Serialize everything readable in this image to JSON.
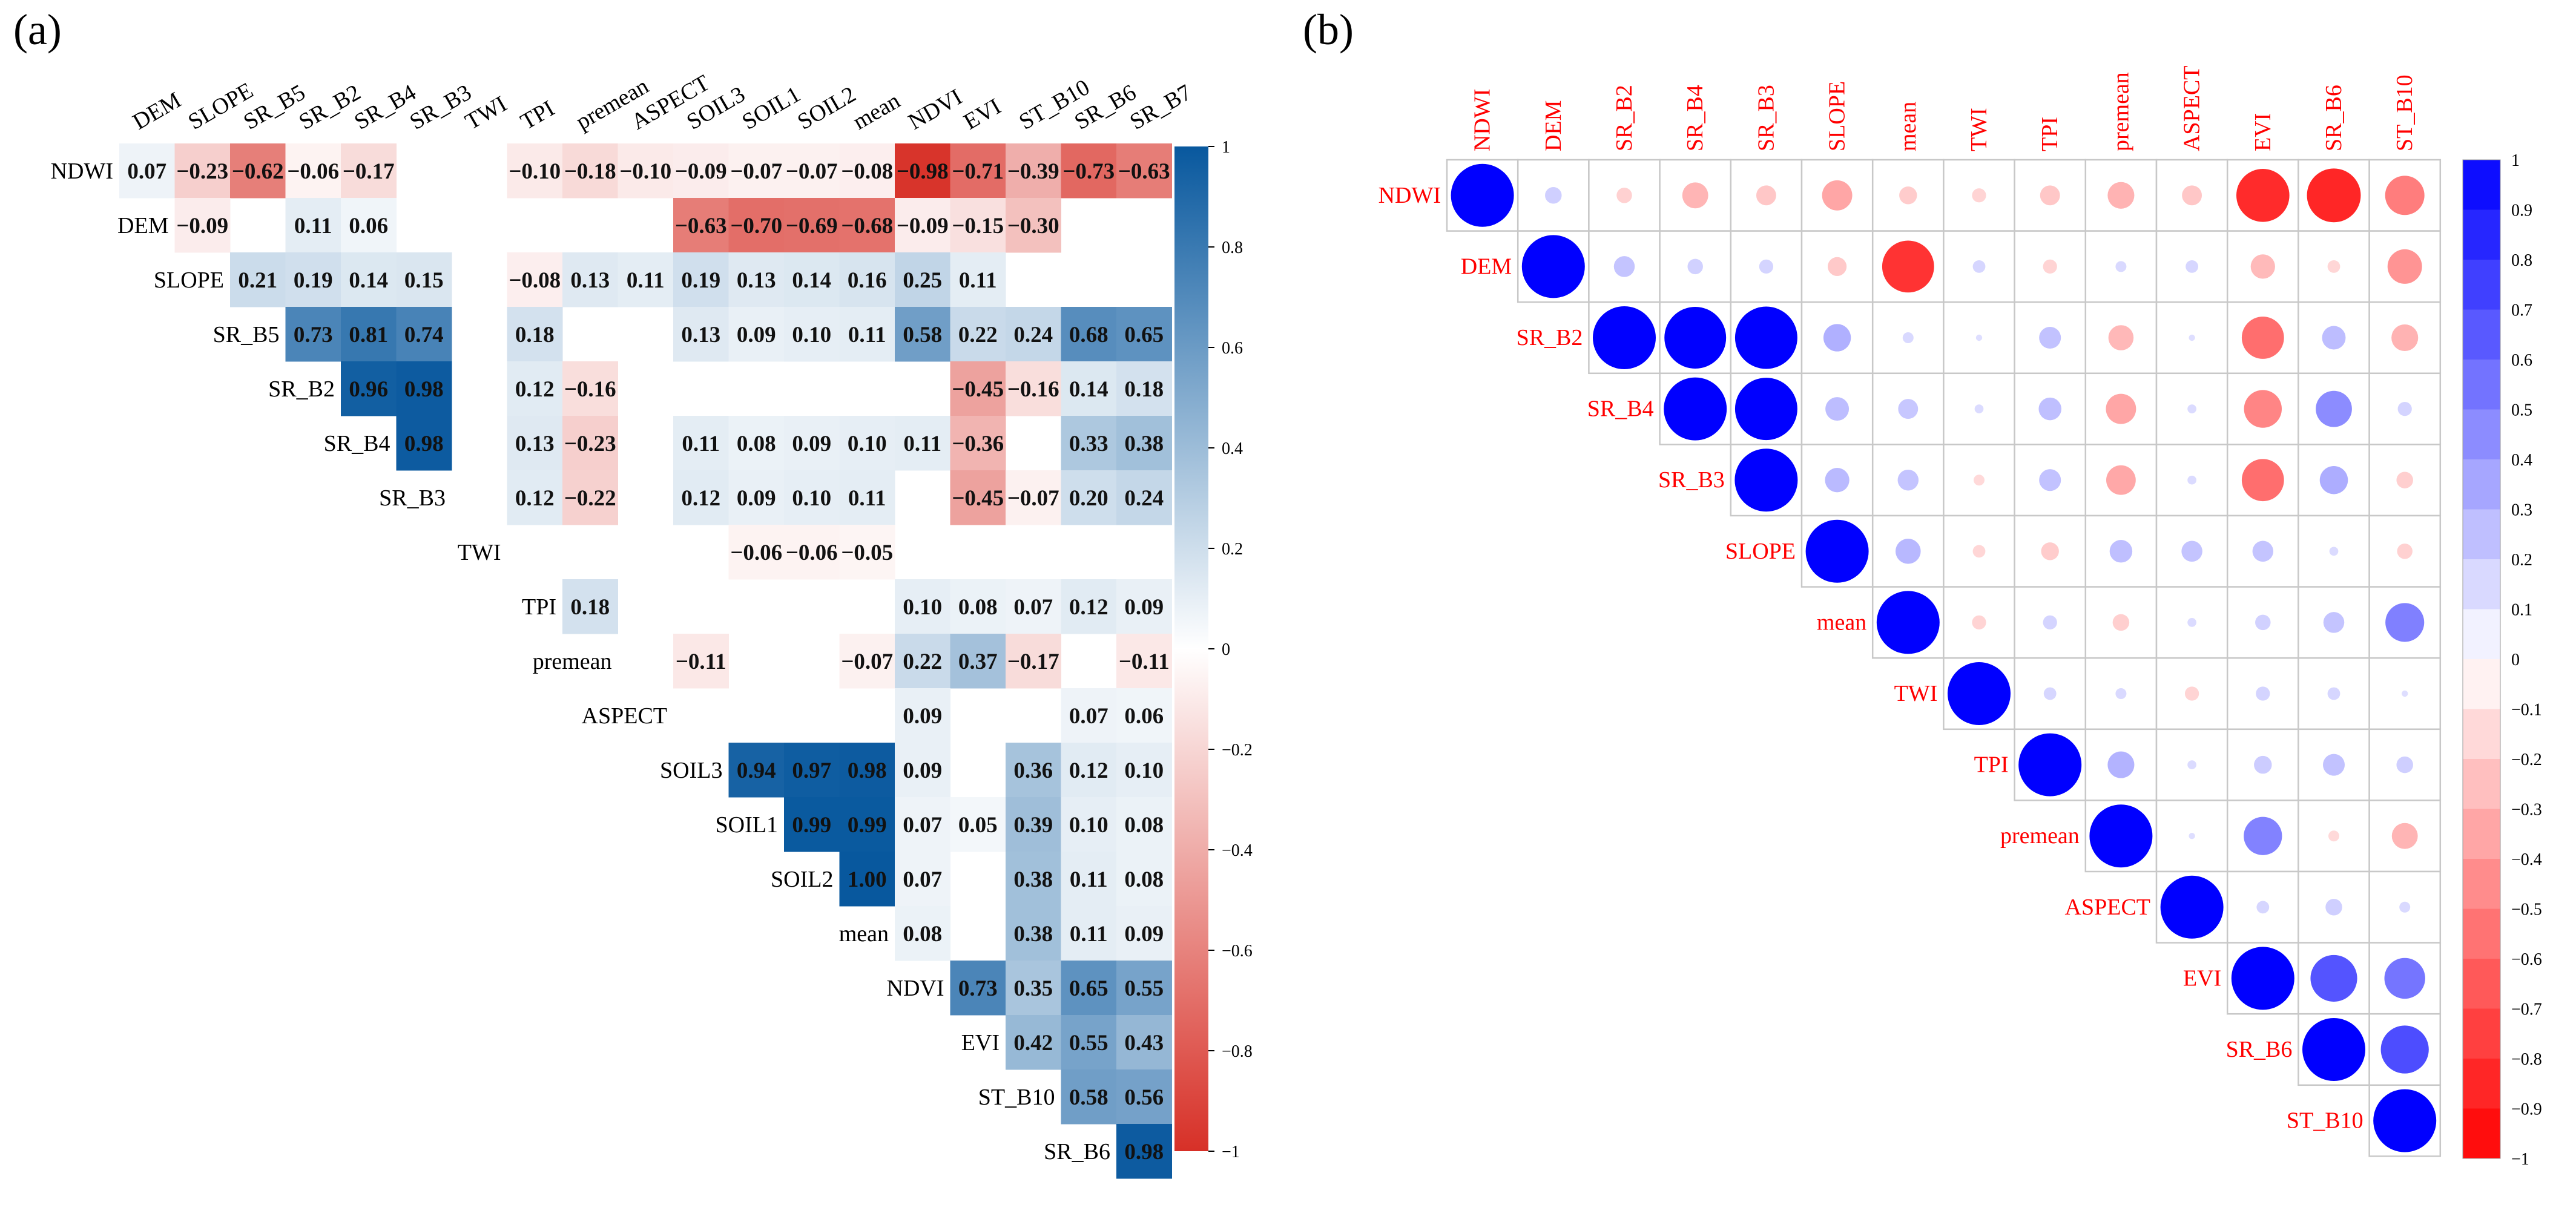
{
  "panels": {
    "a": {
      "label": "(a)"
    },
    "b": {
      "label": "(b)"
    }
  },
  "chart_data": [
    {
      "type": "heatmap",
      "panel": "(a)",
      "title": "",
      "columns": [
        "DEM",
        "SLOPE",
        "SR_B5",
        "SR_B2",
        "SR_B4",
        "SR_B3",
        "TWI",
        "TPI",
        "premean",
        "ASPECT",
        "SOIL3",
        "SOIL1",
        "SOIL2",
        "mean",
        "NDVI",
        "EVI",
        "ST_B10",
        "SR_B6",
        "SR_B7"
      ],
      "rows": [
        "NDWI",
        "DEM",
        "SLOPE",
        "SR_B5",
        "SR_B2",
        "SR_B4",
        "SR_B3",
        "TWI",
        "TPI",
        "premean",
        "ASPECT",
        "SOIL3",
        "SOIL1",
        "SOIL2",
        "mean",
        "NDVI",
        "EVI",
        "ST_B10",
        "SR_B6"
      ],
      "values": [
        [
          0.07,
          -0.23,
          -0.62,
          -0.06,
          -0.17,
          null,
          null,
          -0.1,
          -0.18,
          -0.1,
          -0.09,
          -0.07,
          -0.07,
          -0.08,
          -0.98,
          -0.71,
          -0.39,
          -0.73,
          -0.63
        ],
        [
          null,
          -0.09,
          null,
          0.11,
          0.06,
          null,
          null,
          null,
          null,
          null,
          -0.63,
          -0.7,
          -0.69,
          -0.68,
          -0.09,
          -0.15,
          -0.3,
          null,
          null
        ],
        [
          null,
          null,
          0.21,
          0.19,
          0.14,
          0.15,
          null,
          -0.08,
          0.13,
          0.11,
          0.19,
          0.13,
          0.14,
          0.16,
          0.25,
          0.11,
          null,
          null,
          null
        ],
        [
          null,
          null,
          null,
          0.73,
          0.81,
          0.74,
          null,
          0.18,
          null,
          null,
          0.13,
          0.09,
          0.1,
          0.11,
          0.58,
          0.22,
          0.24,
          0.68,
          0.65
        ],
        [
          null,
          null,
          null,
          null,
          0.96,
          0.98,
          null,
          0.12,
          -0.16,
          null,
          null,
          null,
          null,
          null,
          null,
          -0.45,
          -0.16,
          0.14,
          0.18
        ],
        [
          null,
          null,
          null,
          null,
          null,
          0.98,
          null,
          0.13,
          -0.23,
          null,
          0.11,
          0.08,
          0.09,
          0.1,
          0.11,
          -0.36,
          null,
          0.33,
          0.38
        ],
        [
          null,
          null,
          null,
          null,
          null,
          null,
          null,
          0.12,
          -0.22,
          null,
          0.12,
          0.09,
          0.1,
          0.11,
          null,
          -0.45,
          -0.07,
          0.2,
          0.24
        ],
        [
          null,
          null,
          null,
          null,
          null,
          null,
          null,
          null,
          null,
          null,
          null,
          -0.06,
          -0.06,
          -0.05,
          null,
          null,
          null,
          null,
          null
        ],
        [
          null,
          null,
          null,
          null,
          null,
          null,
          null,
          null,
          0.18,
          null,
          null,
          null,
          null,
          null,
          0.1,
          0.08,
          0.07,
          0.12,
          0.09
        ],
        [
          null,
          null,
          null,
          null,
          null,
          null,
          null,
          null,
          null,
          null,
          -0.11,
          null,
          null,
          -0.07,
          0.22,
          0.37,
          -0.17,
          null,
          -0.11
        ],
        [
          null,
          null,
          null,
          null,
          null,
          null,
          null,
          null,
          null,
          null,
          null,
          null,
          null,
          null,
          0.09,
          null,
          null,
          0.07,
          0.06
        ],
        [
          null,
          null,
          null,
          null,
          null,
          null,
          null,
          null,
          null,
          null,
          null,
          0.94,
          0.97,
          0.98,
          0.09,
          null,
          0.36,
          0.12,
          0.1
        ],
        [
          null,
          null,
          null,
          null,
          null,
          null,
          null,
          null,
          null,
          null,
          null,
          null,
          0.99,
          0.99,
          0.07,
          0.05,
          0.39,
          0.1,
          0.08
        ],
        [
          null,
          null,
          null,
          null,
          null,
          null,
          null,
          null,
          null,
          null,
          null,
          null,
          null,
          1.0,
          0.07,
          null,
          0.38,
          0.11,
          0.08
        ],
        [
          null,
          null,
          null,
          null,
          null,
          null,
          null,
          null,
          null,
          null,
          null,
          null,
          null,
          null,
          0.08,
          null,
          0.38,
          0.11,
          0.09
        ],
        [
          null,
          null,
          null,
          null,
          null,
          null,
          null,
          null,
          null,
          null,
          null,
          null,
          null,
          null,
          null,
          0.73,
          0.35,
          0.65,
          0.55
        ],
        [
          null,
          null,
          null,
          null,
          null,
          null,
          null,
          null,
          null,
          null,
          null,
          null,
          null,
          null,
          null,
          null,
          0.42,
          0.55,
          0.43
        ],
        [
          null,
          null,
          null,
          null,
          null,
          null,
          null,
          null,
          null,
          null,
          null,
          null,
          null,
          null,
          null,
          null,
          null,
          0.58,
          0.56
        ],
        [
          null,
          null,
          null,
          null,
          null,
          null,
          null,
          null,
          null,
          null,
          null,
          null,
          null,
          null,
          null,
          null,
          null,
          null,
          0.98
        ]
      ],
      "colorbar": {
        "min": -1,
        "max": 1,
        "ticks": [
          "1",
          "0.8",
          "0.6",
          "0.4",
          "0.2",
          "0",
          "−0.2",
          "−0.4",
          "−0.6",
          "−0.8",
          "−1"
        ],
        "tick_values": [
          1,
          0.8,
          0.6,
          0.4,
          0.2,
          0,
          -0.2,
          -0.4,
          -0.6,
          -0.8,
          -1
        ]
      },
      "colors": {
        "negative": "#d73027",
        "neutral": "#ffffff",
        "positive": "#08589e"
      }
    },
    {
      "type": "heatmap",
      "panel": "(b)",
      "style": "upper-triangle circle correlogram",
      "variables": [
        "NDWI",
        "DEM",
        "SR_B2",
        "SR_B4",
        "SR_B3",
        "SLOPE",
        "mean",
        "TWI",
        "TPI",
        "premean",
        "ASPECT",
        "EVI",
        "SR_B6",
        "ST_B10"
      ],
      "values": [
        [
          1.0,
          0.07,
          -0.06,
          -0.17,
          -0.1,
          -0.23,
          -0.08,
          -0.05,
          -0.1,
          -0.18,
          -0.1,
          -0.71,
          -0.73,
          -0.39
        ],
        [
          null,
          1.0,
          0.11,
          0.06,
          0.05,
          -0.09,
          -0.68,
          0.04,
          -0.05,
          0.03,
          0.04,
          -0.15,
          -0.04,
          -0.3
        ],
        [
          null,
          null,
          1.0,
          0.96,
          0.98,
          0.19,
          0.03,
          0.01,
          0.12,
          -0.16,
          0.01,
          -0.45,
          0.14,
          -0.18
        ],
        [
          null,
          null,
          null,
          1.0,
          0.98,
          0.14,
          0.1,
          0.02,
          0.13,
          -0.23,
          0.02,
          -0.36,
          0.33,
          0.05
        ],
        [
          null,
          null,
          null,
          null,
          1.0,
          0.15,
          0.11,
          -0.03,
          0.12,
          -0.22,
          0.02,
          -0.45,
          0.2,
          -0.07
        ],
        [
          null,
          null,
          null,
          null,
          null,
          1.0,
          0.16,
          -0.04,
          -0.08,
          0.13,
          0.11,
          0.11,
          0.02,
          -0.06
        ],
        [
          null,
          null,
          null,
          null,
          null,
          null,
          1.0,
          -0.05,
          0.05,
          -0.07,
          0.02,
          0.06,
          0.11,
          0.38
        ],
        [
          null,
          null,
          null,
          null,
          null,
          null,
          null,
          1.0,
          0.04,
          0.03,
          -0.05,
          0.05,
          0.04,
          0.01
        ],
        [
          null,
          null,
          null,
          null,
          null,
          null,
          null,
          null,
          1.0,
          0.18,
          0.02,
          0.08,
          0.12,
          0.07
        ],
        [
          null,
          null,
          null,
          null,
          null,
          null,
          null,
          null,
          null,
          1.0,
          0.01,
          0.37,
          -0.03,
          -0.17
        ],
        [
          null,
          null,
          null,
          null,
          null,
          null,
          null,
          null,
          null,
          null,
          1.0,
          0.04,
          0.07,
          0.03
        ],
        [
          null,
          null,
          null,
          null,
          null,
          null,
          null,
          null,
          null,
          null,
          null,
          1.0,
          0.55,
          0.42
        ],
        [
          null,
          null,
          null,
          null,
          null,
          null,
          null,
          null,
          null,
          null,
          null,
          null,
          1.0,
          0.58
        ],
        [
          null,
          null,
          null,
          null,
          null,
          null,
          null,
          null,
          null,
          null,
          null,
          null,
          null,
          1.0
        ]
      ],
      "colorbar": {
        "min": -1,
        "max": 1,
        "ticks": [
          "1",
          "0.9",
          "0.8",
          "0.7",
          "0.6",
          "0.5",
          "0.4",
          "0.3",
          "0.2",
          "0.1",
          "0",
          "−0.1",
          "−0.2",
          "−0.3",
          "−0.4",
          "−0.5",
          "−0.6",
          "−0.7",
          "−0.8",
          "−0.9",
          "−1"
        ],
        "tick_values": [
          1,
          0.9,
          0.8,
          0.7,
          0.6,
          0.5,
          0.4,
          0.3,
          0.2,
          0.1,
          0,
          -0.1,
          -0.2,
          -0.3,
          -0.4,
          -0.5,
          -0.6,
          -0.7,
          -0.8,
          -0.9,
          -1
        ]
      },
      "colors": {
        "negative": "#ff0000",
        "neutral": "#ffffff",
        "positive": "#0000ff",
        "label": "#ff0000",
        "grid": "#c8c8c8"
      }
    }
  ]
}
